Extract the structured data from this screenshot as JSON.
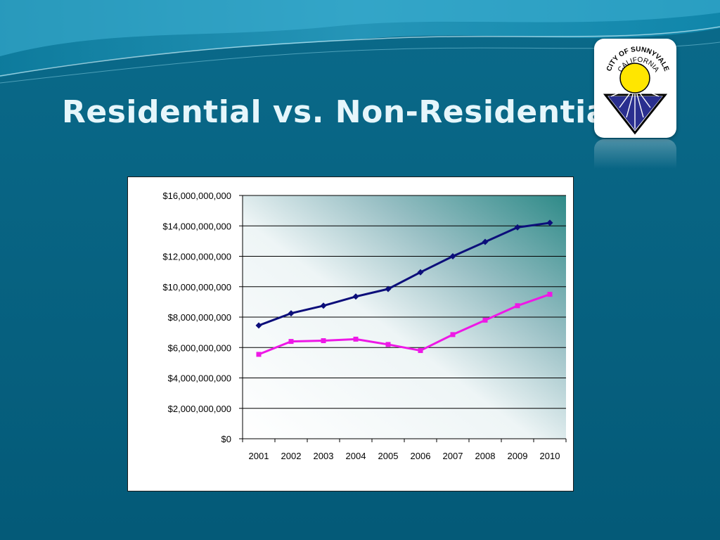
{
  "slide": {
    "title": "Residential vs. Non-Residential",
    "logo": {
      "text_top": "CITY OF SUNNYVALE",
      "text_inner": "CALIFORNIA",
      "colors": {
        "sun": "#ffe600",
        "rays": "#2a2f8f",
        "border": "#000000"
      }
    },
    "colors": {
      "background": "#055e7c",
      "title": "#e6f6fb"
    }
  },
  "chart_data": {
    "type": "line",
    "title": "",
    "xlabel": "",
    "ylabel": "",
    "categories": [
      "2001",
      "2002",
      "2003",
      "2004",
      "2005",
      "2006",
      "2007",
      "2008",
      "2009",
      "2010"
    ],
    "series": [
      {
        "color": "#0c0e7a",
        "marker": "diamond",
        "values": [
          7450000000,
          8250000000,
          8750000000,
          9350000000,
          9850000000,
          10950000000,
          12000000000,
          12950000000,
          13900000000,
          14200000000
        ]
      },
      {
        "color": "#ee18e6",
        "marker": "square",
        "values": [
          5550000000,
          6400000000,
          6450000000,
          6550000000,
          6200000000,
          5800000000,
          6850000000,
          7800000000,
          8750000000,
          9500000000
        ]
      }
    ],
    "ylim": [
      0,
      16000000000
    ],
    "yticks": [
      0,
      2000000000,
      4000000000,
      6000000000,
      8000000000,
      10000000000,
      12000000000,
      14000000000,
      16000000000
    ],
    "ytick_labels": [
      "$0",
      "$2,000,000,000",
      "$4,000,000,000",
      "$6,000,000,000",
      "$8,000,000,000",
      "$10,000,000,000",
      "$12,000,000,000",
      "$14,000,000,000",
      "$16,000,000,000"
    ],
    "grid": true,
    "legend": "none"
  }
}
